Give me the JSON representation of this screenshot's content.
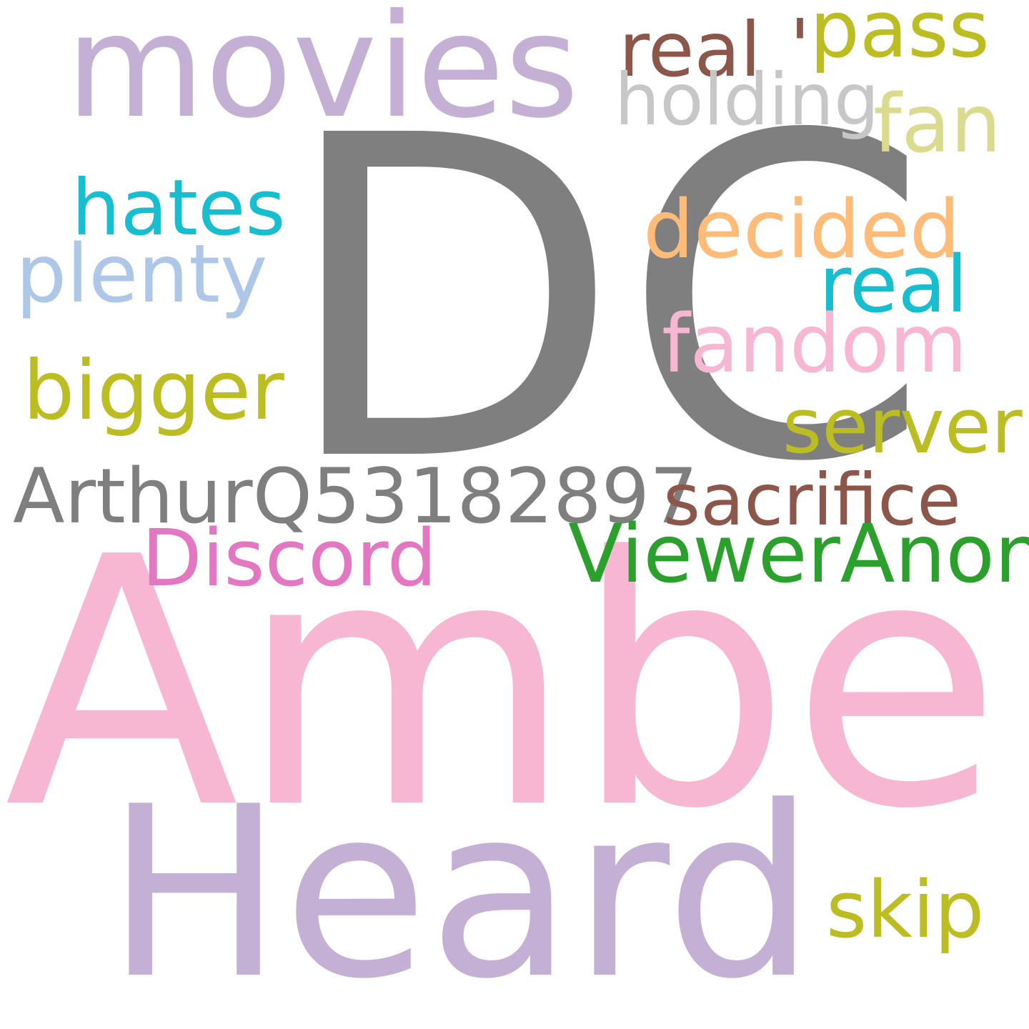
{
  "words": [
    {
      "id": "dc",
      "text": "DC",
      "color": "#7f7f7f"
    },
    {
      "id": "amber",
      "text": "Amber",
      "color": "#f7b6d2"
    },
    {
      "id": "heard",
      "text": "Heard",
      "color": "#c5b0d5"
    },
    {
      "id": "movies",
      "text": "movies",
      "color": "#c5b0d5"
    },
    {
      "id": "real1",
      "text": "real",
      "color": "#8c564b"
    },
    {
      "id": "apos",
      "text": "'",
      "color": "#8c564b"
    },
    {
      "id": "pass",
      "text": "pass",
      "color": "#bcbd22"
    },
    {
      "id": "holding",
      "text": "holding",
      "color": "#c7c7c7"
    },
    {
      "id": "fan",
      "text": "fan",
      "color": "#dbdb8d"
    },
    {
      "id": "hates",
      "text": "hates",
      "color": "#17becf"
    },
    {
      "id": "decided",
      "text": "decided",
      "color": "#ffbb78"
    },
    {
      "id": "plenty",
      "text": "plenty",
      "color": "#aec7e8"
    },
    {
      "id": "real2",
      "text": "real",
      "color": "#17becf"
    },
    {
      "id": "fandom",
      "text": "fandom",
      "color": "#f7b6d2"
    },
    {
      "id": "bigger",
      "text": "bigger",
      "color": "#bcbd22"
    },
    {
      "id": "server",
      "text": "server",
      "color": "#bcbd22"
    },
    {
      "id": "arthur",
      "text": "ArthurQ53182897",
      "color": "#7f7f7f"
    },
    {
      "id": "sacrifice",
      "text": "sacrifice",
      "color": "#8c564b"
    },
    {
      "id": "discord",
      "text": "Discord",
      "color": "#e377c2"
    },
    {
      "id": "viewer",
      "text": "ViewerAnon",
      "color": "#2ca02c"
    },
    {
      "id": "skip",
      "text": "skip",
      "color": "#bcbd22"
    }
  ]
}
